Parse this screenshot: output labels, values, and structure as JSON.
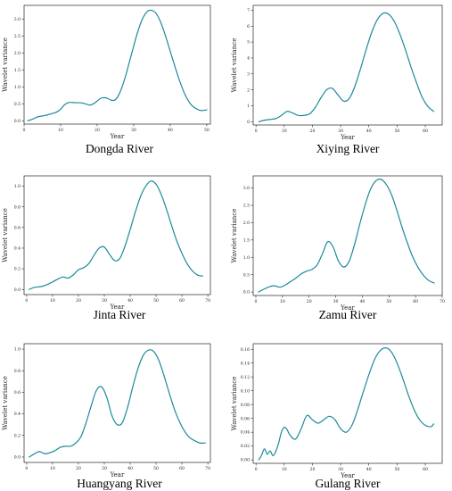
{
  "colors": {
    "line": "#1a8a9a",
    "axis": "#000000",
    "text": "#222222"
  },
  "chart_data": [
    {
      "type": "line",
      "title": "Dongda River",
      "xlabel": "Year",
      "ylabel": "Wavelet variance",
      "xlim": [
        0,
        51
      ],
      "ylim": [
        -0.1,
        3.4
      ],
      "xticks": [
        0,
        10,
        20,
        30,
        40,
        50
      ],
      "yticks": [
        0.0,
        0.5,
        1.0,
        1.5,
        2.0,
        2.5,
        3.0
      ],
      "ytick_labels": [
        "0.0",
        "0.5",
        "1.0",
        "1.5",
        "2.0",
        "2.5",
        "3.0"
      ],
      "x": [
        1,
        2,
        3,
        4,
        5,
        6,
        7,
        8,
        9,
        10,
        11,
        12,
        13,
        14,
        15,
        16,
        17,
        18,
        19,
        20,
        21,
        22,
        23,
        24,
        25,
        26,
        27,
        28,
        29,
        30,
        31,
        32,
        33,
        34,
        35,
        36,
        37,
        38,
        39,
        40,
        41,
        42,
        43,
        44,
        45,
        46,
        47,
        48,
        49,
        50
      ],
      "y": [
        0.0,
        0.03,
        0.08,
        0.12,
        0.14,
        0.16,
        0.19,
        0.22,
        0.26,
        0.34,
        0.46,
        0.53,
        0.54,
        0.53,
        0.53,
        0.52,
        0.49,
        0.46,
        0.5,
        0.58,
        0.66,
        0.68,
        0.65,
        0.6,
        0.62,
        0.78,
        1.05,
        1.4,
        1.8,
        2.2,
        2.58,
        2.9,
        3.12,
        3.24,
        3.25,
        3.18,
        3.0,
        2.73,
        2.4,
        2.05,
        1.7,
        1.36,
        1.05,
        0.78,
        0.58,
        0.44,
        0.36,
        0.31,
        0.3,
        0.32
      ]
    },
    {
      "type": "line",
      "title": "Xiying River",
      "xlabel": "Year",
      "ylabel": "Wavelet variance",
      "xlim": [
        -1,
        66
      ],
      "ylim": [
        -0.2,
        7.3
      ],
      "xticks": [
        0,
        10,
        20,
        30,
        40,
        50,
        60
      ],
      "yticks": [
        0,
        1,
        2,
        3,
        4,
        5,
        6,
        7
      ],
      "ytick_labels": [
        "0",
        "1",
        "2",
        "3",
        "4",
        "5",
        "6",
        "7"
      ],
      "x": [
        1,
        3,
        5,
        7,
        9,
        11,
        13,
        15,
        17,
        19,
        21,
        23,
        25,
        27,
        29,
        31,
        33,
        35,
        37,
        39,
        41,
        43,
        45,
        47,
        49,
        51,
        53,
        55,
        57,
        59,
        61,
        63
      ],
      "y": [
        0.0,
        0.1,
        0.15,
        0.2,
        0.4,
        0.65,
        0.55,
        0.4,
        0.4,
        0.5,
        0.9,
        1.5,
        2.0,
        2.1,
        1.7,
        1.3,
        1.45,
        2.2,
        3.3,
        4.5,
        5.6,
        6.4,
        6.8,
        6.75,
        6.3,
        5.5,
        4.5,
        3.4,
        2.4,
        1.5,
        0.95,
        0.65
      ]
    },
    {
      "type": "line",
      "title": "Jinta River",
      "xlabel": "Year",
      "ylabel": "Wavelet variance",
      "xlim": [
        -1,
        71
      ],
      "ylim": [
        -0.05,
        1.1
      ],
      "xticks": [
        0,
        10,
        20,
        30,
        40,
        50,
        60,
        70
      ],
      "yticks": [
        0.0,
        0.2,
        0.4,
        0.6,
        0.8,
        1.0
      ],
      "ytick_labels": [
        "0.0",
        "0.2",
        "0.4",
        "0.6",
        "0.8",
        "1.0"
      ],
      "x": [
        1,
        3,
        6,
        9,
        12,
        14,
        16,
        18,
        20,
        22,
        24,
        26,
        28,
        30,
        32,
        34,
        36,
        38,
        40,
        42,
        44,
        46,
        48,
        50,
        52,
        54,
        56,
        58,
        60,
        62,
        64,
        66,
        68
      ],
      "y": [
        0.0,
        0.02,
        0.03,
        0.06,
        0.1,
        0.12,
        0.11,
        0.14,
        0.19,
        0.21,
        0.25,
        0.33,
        0.4,
        0.41,
        0.34,
        0.28,
        0.3,
        0.42,
        0.58,
        0.75,
        0.9,
        1.0,
        1.05,
        1.02,
        0.92,
        0.78,
        0.62,
        0.47,
        0.35,
        0.25,
        0.18,
        0.14,
        0.13
      ]
    },
    {
      "type": "line",
      "title": "Zamu River",
      "xlabel": "Year",
      "ylabel": "Wavelet variance",
      "xlim": [
        -1,
        70
      ],
      "ylim": [
        -0.1,
        3.35
      ],
      "xticks": [
        0,
        10,
        20,
        30,
        40,
        50,
        60,
        70
      ],
      "yticks": [
        0.0,
        0.5,
        1.0,
        1.5,
        2.0,
        2.5,
        3.0
      ],
      "ytick_labels": [
        "0.0",
        "0.5",
        "1.0",
        "1.5",
        "2.0",
        "2.5",
        "3.0"
      ],
      "x": [
        1,
        3,
        5,
        7,
        9,
        11,
        13,
        15,
        17,
        19,
        21,
        23,
        25,
        27,
        29,
        31,
        33,
        35,
        37,
        39,
        41,
        43,
        45,
        47,
        49,
        51,
        53,
        55,
        57,
        59,
        61,
        63,
        65,
        67
      ],
      "y": [
        0.0,
        0.08,
        0.15,
        0.18,
        0.14,
        0.2,
        0.3,
        0.4,
        0.52,
        0.6,
        0.65,
        0.78,
        1.1,
        1.45,
        1.3,
        0.9,
        0.72,
        0.88,
        1.35,
        1.95,
        2.5,
        2.95,
        3.2,
        3.25,
        3.1,
        2.8,
        2.35,
        1.85,
        1.4,
        1.0,
        0.7,
        0.48,
        0.33,
        0.26
      ]
    },
    {
      "type": "line",
      "title": "Huangyang River",
      "xlabel": "Year",
      "ylabel": "Wavelet variance",
      "xlim": [
        -1,
        71
      ],
      "ylim": [
        -0.05,
        1.05
      ],
      "xticks": [
        0,
        10,
        20,
        30,
        40,
        50,
        60,
        70
      ],
      "yticks": [
        0.0,
        0.2,
        0.4,
        0.6,
        0.8,
        1.0
      ],
      "ytick_labels": [
        "0.0",
        "0.2",
        "0.4",
        "0.6",
        "0.8",
        "1.0"
      ],
      "x": [
        1,
        3,
        5,
        7,
        9,
        11,
        13,
        15,
        17,
        19,
        21,
        23,
        25,
        27,
        29,
        31,
        33,
        35,
        37,
        39,
        41,
        43,
        45,
        47,
        49,
        51,
        53,
        55,
        57,
        59,
        61,
        63,
        65,
        67,
        69
      ],
      "y": [
        0.0,
        0.03,
        0.05,
        0.03,
        0.04,
        0.06,
        0.09,
        0.1,
        0.1,
        0.13,
        0.19,
        0.32,
        0.48,
        0.62,
        0.65,
        0.55,
        0.38,
        0.3,
        0.32,
        0.46,
        0.65,
        0.82,
        0.94,
        0.99,
        0.98,
        0.9,
        0.76,
        0.6,
        0.45,
        0.33,
        0.24,
        0.18,
        0.15,
        0.13,
        0.13
      ]
    },
    {
      "type": "line",
      "title": "Gulang River",
      "xlabel": "Year",
      "ylabel": "Wavelet variance",
      "xlim": [
        -1,
        66
      ],
      "ylim": [
        -0.005,
        0.168
      ],
      "xticks": [
        0,
        10,
        20,
        30,
        40,
        50,
        60
      ],
      "yticks": [
        0.0,
        0.02,
        0.04,
        0.06,
        0.08,
        0.1,
        0.12,
        0.14,
        0.16
      ],
      "ytick_labels": [
        "0.00",
        "0.02",
        "0.04",
        "0.06",
        "0.08",
        "0.10",
        "0.12",
        "0.14",
        "0.16"
      ],
      "x": [
        1,
        2,
        3,
        4,
        5,
        6,
        7,
        8,
        9,
        10,
        11,
        12,
        14,
        16,
        18,
        20,
        22,
        24,
        26,
        28,
        30,
        32,
        34,
        36,
        38,
        40,
        42,
        44,
        46,
        48,
        50,
        52,
        54,
        56,
        58,
        60,
        62,
        63
      ],
      "y": [
        0.0,
        0.007,
        0.016,
        0.008,
        0.013,
        0.006,
        0.012,
        0.024,
        0.04,
        0.047,
        0.044,
        0.036,
        0.03,
        0.045,
        0.064,
        0.058,
        0.053,
        0.058,
        0.063,
        0.058,
        0.045,
        0.04,
        0.05,
        0.072,
        0.098,
        0.123,
        0.145,
        0.158,
        0.162,
        0.156,
        0.14,
        0.118,
        0.094,
        0.073,
        0.058,
        0.05,
        0.048,
        0.052
      ]
    }
  ]
}
